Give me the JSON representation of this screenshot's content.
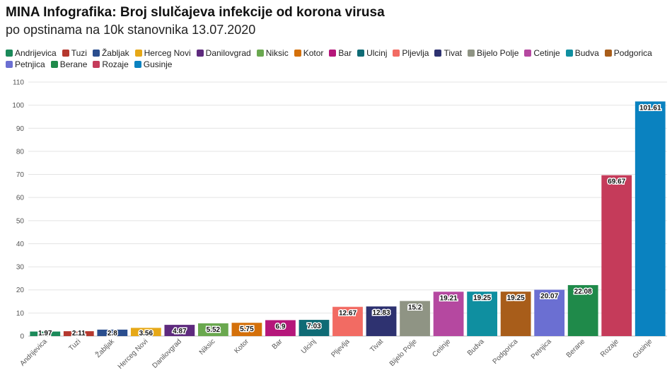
{
  "header": {
    "title": "MINA Infografika: Broj slulčajeva infekcije od korona virusa",
    "subtitle": "po opstinama na 10k stanovnika 13.07.2020"
  },
  "chart_data": {
    "type": "bar",
    "title": "MINA Infografika: Broj slulčajeva infekcije od korona virusa",
    "subtitle": "po opstinama na 10k stanovnika 13.07.2020",
    "xlabel": "",
    "ylabel": "",
    "ylim": [
      0,
      110
    ],
    "yticks": [
      0,
      10,
      20,
      30,
      40,
      50,
      60,
      70,
      80,
      90,
      100,
      110
    ],
    "grid": true,
    "legend_position": "top-left",
    "categories": [
      "Andrijevica",
      "Tuzi",
      "Žabljak",
      "Herceg Novi",
      "Danilovgrad",
      "Niksic",
      "Kotor",
      "Bar",
      "Ulcinj",
      "Pljevlja",
      "Tivat",
      "Bijelo Polje",
      "Cetinje",
      "Budva",
      "Podgorica",
      "Petnjica",
      "Berane",
      "Rozaje",
      "Gusinje"
    ],
    "values": [
      1.97,
      2.11,
      2.8,
      3.56,
      4.87,
      5.52,
      5.75,
      6.9,
      7.03,
      12.67,
      12.83,
      15.2,
      19.21,
      19.25,
      19.25,
      20.07,
      22.08,
      69.67,
      101.61
    ],
    "value_labels": [
      "1.97",
      "2.11",
      "2.8",
      "3.56",
      "4.87",
      "5.52",
      "5.75",
      "6.9",
      "7.03",
      "12.67",
      "12.83",
      "15.2",
      "19.21",
      "19.25",
      "19.25",
      "20.07",
      "22.08",
      "69.67",
      "101.61"
    ],
    "colors": [
      "#1b8a5a",
      "#b5382e",
      "#2a4e8e",
      "#e6a817",
      "#5e2a7e",
      "#6aa84f",
      "#d4700a",
      "#b5167a",
      "#0f6b75",
      "#f26b63",
      "#2e3270",
      "#8f9484",
      "#b548a0",
      "#0f8fa0",
      "#a85d1a",
      "#6b6fd2",
      "#1f8a4a",
      "#c53b5a",
      "#0a82c0"
    ]
  }
}
